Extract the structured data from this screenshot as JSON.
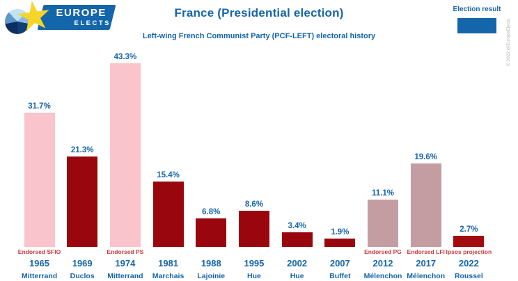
{
  "logo": {
    "line1": "EUROPE",
    "line2": "ELECTS"
  },
  "header": {
    "title": "France (Presidential election)",
    "subtitle": "Left-wing French Communist Party (PCF-LEFT) electoral history"
  },
  "legend": {
    "label": "Election result",
    "swatch_color": "#1565ab"
  },
  "copyright": "© 2022 @EuropeElects",
  "colors": {
    "pink": "#f9c4cb",
    "dark_red": "#9a060e",
    "mauve": "#c49da2",
    "red_2022": "#a30b10",
    "accent_blue": "#1565ab",
    "note_red": "#c93a40"
  },
  "chart_data": {
    "type": "bar",
    "title": "France (Presidential election)",
    "subtitle": "Left-wing French Communist Party (PCF-LEFT) electoral history",
    "legend": "Election result",
    "unit": "%",
    "ylim": [
      0,
      45
    ],
    "grid": false,
    "categories": [
      "1965",
      "1969",
      "1974",
      "1981",
      "1988",
      "1995",
      "2002",
      "2007",
      "2012",
      "2017",
      "2022"
    ],
    "values": [
      31.7,
      21.3,
      43.3,
      15.4,
      6.8,
      8.6,
      3.4,
      1.9,
      11.1,
      19.6,
      2.7
    ],
    "bars": [
      {
        "year": "1965",
        "candidate": "Mitterrand",
        "value": 31.7,
        "label": "31.7%",
        "note": "Endorsed SFIO",
        "color": "pink"
      },
      {
        "year": "1969",
        "candidate": "Duclos",
        "value": 21.3,
        "label": "21.3%",
        "note": "",
        "color": "dark_red"
      },
      {
        "year": "1974",
        "candidate": "Mitterrand",
        "value": 43.3,
        "label": "43.3%",
        "note": "Endorsed PS",
        "color": "pink"
      },
      {
        "year": "1981",
        "candidate": "Marchais",
        "value": 15.4,
        "label": "15.4%",
        "note": "",
        "color": "dark_red"
      },
      {
        "year": "1988",
        "candidate": "Lajoinie",
        "value": 6.8,
        "label": "6.8%",
        "note": "",
        "color": "dark_red"
      },
      {
        "year": "1995",
        "candidate": "Hue",
        "value": 8.6,
        "label": "8.6%",
        "note": "",
        "color": "dark_red"
      },
      {
        "year": "2002",
        "candidate": "Hue",
        "value": 3.4,
        "label": "3.4%",
        "note": "",
        "color": "dark_red"
      },
      {
        "year": "2007",
        "candidate": "Buffet",
        "value": 1.9,
        "label": "1.9%",
        "note": "",
        "color": "dark_red"
      },
      {
        "year": "2012",
        "candidate": "Mélenchon",
        "value": 11.1,
        "label": "11.1%",
        "note": "Endorsed PG",
        "color": "mauve"
      },
      {
        "year": "2017",
        "candidate": "Mélenchon",
        "value": 19.6,
        "label": "19.6%",
        "note": "Endorsed LFI",
        "color": "mauve"
      },
      {
        "year": "2022",
        "candidate": "Roussel",
        "value": 2.7,
        "label": "2.7%",
        "note": "Ipsos projection",
        "color": "red_2022"
      }
    ]
  }
}
